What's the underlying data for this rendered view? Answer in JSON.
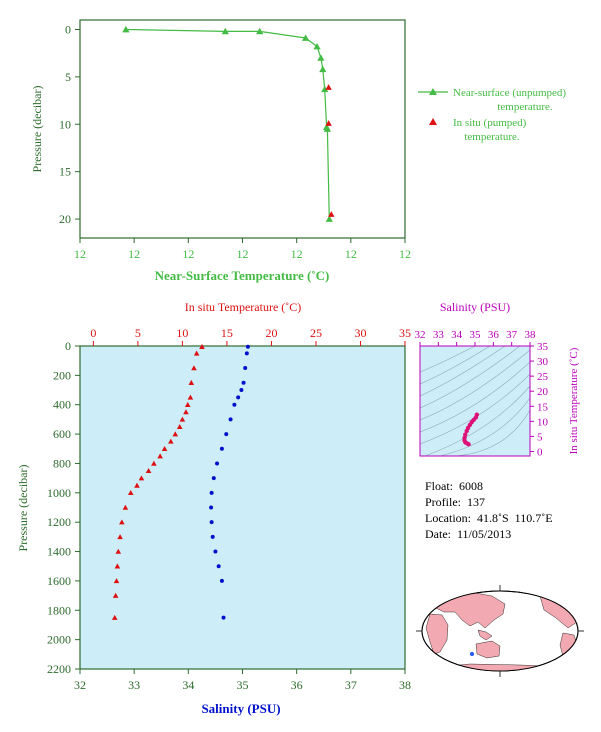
{
  "colors": {
    "near_surface": "#44bb44",
    "temperature": "#dd1111",
    "salinity": "#0011cc",
    "ts_curve": "#dd1177",
    "axis_green": "#2e6b2e",
    "axis_purple": "#bb00bb",
    "panel_bg": "#cdeef8",
    "land": "#f2a9b1"
  },
  "chart_data": [
    {
      "type": "line",
      "ylabel": "Pressure (decibar)",
      "xlabel": "Near-Surface Temperature (˚C)",
      "ylim": [
        22,
        -1
      ],
      "yticks": [
        0,
        5,
        10,
        15,
        20
      ],
      "xticks_labels": [
        "12",
        "12",
        "12",
        "12",
        "12",
        "12",
        "12"
      ],
      "legend": {
        "placement": "right",
        "near_surface_lines": [
          "Near-surface (unpumped)",
          "temperature."
        ],
        "in_situ_lines": [
          "In situ (pumped)",
          "temperature."
        ]
      },
      "series": [
        {
          "key": "near_surface",
          "x": [
            11.62,
            11.88,
            11.97,
            12.09,
            12.12,
            12.13,
            12.135,
            12.14,
            12.145,
            12.147,
            12.152
          ],
          "y": [
            0,
            0.2,
            0.2,
            0.9,
            1.8,
            3.0,
            4.2,
            6.3,
            10.3,
            10.5,
            20.0
          ]
        },
        {
          "key": "in_situ",
          "x": [
            12.145,
            12.145,
            12.152
          ],
          "y": [
            6.1,
            9.9,
            19.5
          ]
        }
      ]
    },
    {
      "type": "scatter",
      "ylabel": "Pressure (decibar)",
      "ylim": [
        2200,
        0
      ],
      "yticks": [
        0,
        200,
        400,
        600,
        800,
        1000,
        1200,
        1400,
        1600,
        1800,
        2000,
        2200
      ],
      "top_axis": {
        "label": "In situ Temperature (˚C)",
        "ticks": [
          0,
          5,
          10,
          15,
          20,
          25,
          30,
          35
        ],
        "range": [
          -1.5,
          35
        ]
      },
      "bottom_axis": {
        "label": "Salinity (PSU)",
        "ticks": [
          32,
          33,
          34,
          35,
          36,
          37,
          38
        ],
        "range": [
          32,
          38
        ]
      },
      "series": [
        {
          "key": "temperature",
          "x": [
            12.2,
            11.6,
            11.3,
            11.0,
            10.9,
            10.6,
            10.4,
            10.0,
            9.7,
            9.2,
            8.7,
            8.0,
            7.5,
            6.8,
            6.2,
            5.4,
            4.9,
            4.2,
            3.6,
            3.2,
            3.0,
            2.8,
            2.7,
            2.6,
            2.5,
            2.4
          ],
          "y": [
            5,
            50,
            150,
            250,
            350,
            400,
            450,
            500,
            550,
            600,
            650,
            700,
            750,
            800,
            850,
            900,
            950,
            1000,
            1100,
            1200,
            1300,
            1400,
            1500,
            1600,
            1700,
            1850
          ]
        },
        {
          "key": "salinity",
          "x": [
            35.1,
            35.08,
            35.05,
            35.02,
            34.98,
            34.92,
            34.85,
            34.78,
            34.7,
            34.62,
            34.53,
            34.47,
            34.43,
            34.42,
            34.43,
            34.45,
            34.5,
            34.56,
            34.62,
            34.65
          ],
          "y": [
            5,
            50,
            150,
            250,
            300,
            350,
            400,
            500,
            600,
            700,
            800,
            900,
            1000,
            1100,
            1200,
            1300,
            1400,
            1500,
            1600,
            1850
          ]
        }
      ]
    },
    {
      "type": "line",
      "xlabel": "Salinity (PSU)",
      "ylabel": "In situ Temperature (˚C)",
      "xticks": [
        32,
        33,
        34,
        35,
        36,
        37,
        38
      ],
      "yticks": [
        0,
        5,
        10,
        15,
        20,
        25,
        30,
        35
      ],
      "xlim": [
        32,
        38
      ],
      "ylim": [
        -1.5,
        35
      ],
      "series": [
        {
          "key": "ts",
          "x": [
            34.65,
            34.56,
            34.48,
            34.43,
            34.43,
            34.47,
            34.55,
            34.62,
            34.72,
            34.82,
            34.93,
            35.05,
            35.1
          ],
          "y": [
            2.4,
            2.7,
            3.0,
            3.6,
            4.5,
            5.6,
            6.8,
            7.8,
            8.8,
            9.7,
            10.5,
            11.3,
            12.2
          ]
        }
      ]
    }
  ],
  "float_info": {
    "float": "Float:  6008",
    "profile": "Profile:  137",
    "location": "Location:  41.8˚S  110.7˚E",
    "date": "Date:  11/05/2013"
  }
}
